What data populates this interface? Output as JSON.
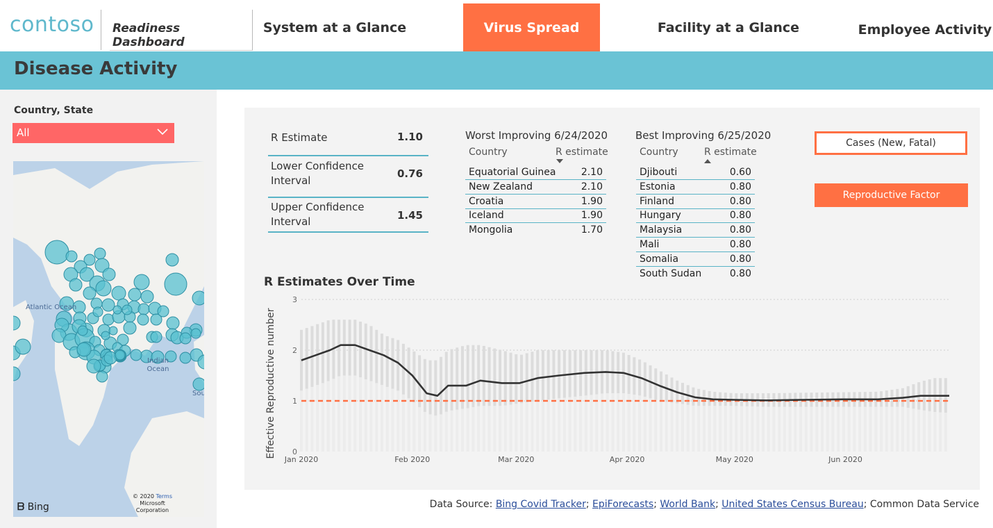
{
  "app": {
    "logo": "contoso",
    "nav": {
      "readiness": "Readiness Dashboard",
      "tabs": [
        {
          "label": "System at a Glance",
          "active": false
        },
        {
          "label": "Virus Spread",
          "active": true
        },
        {
          "label": "Facility at a Glance",
          "active": false
        },
        {
          "label": "Employee Activity",
          "active": false
        }
      ]
    },
    "accent_color": "#ff7043",
    "header_color": "#6ac3d5"
  },
  "page": {
    "title": "Disease Activity"
  },
  "filter": {
    "label": "Country, State",
    "value": "All"
  },
  "map": {
    "labels": {
      "atlantic": "Atlantic Ocean",
      "indian": "Indian Ocean",
      "south": "Sou"
    },
    "provider": "Bing",
    "copyright": "© 2020",
    "terms": "Terms",
    "corporation": "Microsoft Corporation"
  },
  "stats": {
    "r_estimate": {
      "label": "R Estimate",
      "value": "1.10"
    },
    "lower_ci": {
      "label": "Lower Confidence Interval",
      "value": "0.76"
    },
    "upper_ci": {
      "label": "Upper Confidence Interval",
      "value": "1.45"
    }
  },
  "worst": {
    "title": "Worst Improving 6/24/2020",
    "col1": "Country",
    "col2": "R estimate",
    "rows": [
      {
        "country": "Equatorial Guinea",
        "r": "2.10"
      },
      {
        "country": "New Zealand",
        "r": "2.10"
      },
      {
        "country": "Croatia",
        "r": "1.90"
      },
      {
        "country": "Iceland",
        "r": "1.90"
      },
      {
        "country": "Mongolia",
        "r": "1.70"
      }
    ]
  },
  "best": {
    "title": "Best Improving 6/25/2020",
    "col1": "Country",
    "col2": "R estimate",
    "rows": [
      {
        "country": "Djibouti",
        "r": "0.60"
      },
      {
        "country": "Estonia",
        "r": "0.80"
      },
      {
        "country": "Finland",
        "r": "0.80"
      },
      {
        "country": "Hungary",
        "r": "0.80"
      },
      {
        "country": "Malaysia",
        "r": "0.80"
      },
      {
        "country": "Mali",
        "r": "0.80"
      },
      {
        "country": "Somalia",
        "r": "0.80"
      },
      {
        "country": "South Sudan",
        "r": "0.80"
      }
    ]
  },
  "buttons": {
    "cases": "Cases (New, Fatal)",
    "reproductive": "Reproductive Factor"
  },
  "chart_data": {
    "type": "line",
    "title": "R Estimates Over Time",
    "ylabel": "Effective Reproductive number",
    "xlabel": "",
    "ylim": [
      0,
      3
    ],
    "yticks": [
      "0",
      "1",
      "2",
      "3"
    ],
    "xticks": [
      {
        "label": "Jan 2020",
        "x": "2020-01-01"
      },
      {
        "label": "Feb 2020",
        "x": "2020-02-01"
      },
      {
        "label": "Mar 2020",
        "x": "2020-03-01"
      },
      {
        "label": "Apr 2020",
        "x": "2020-04-01"
      },
      {
        "label": "May 2020",
        "x": "2020-05-01"
      },
      {
        "label": "Jun 2020",
        "x": "2020-06-01"
      }
    ],
    "x_range": [
      "2020-01-01",
      "2020-06-30"
    ],
    "reference_line": 1,
    "grid": true,
    "series": [
      {
        "values": [
          {
            "x": "2020-01-01",
            "y": 1.8,
            "low": 1.2,
            "high": 2.4
          },
          {
            "x": "2020-01-05",
            "y": 1.9,
            "low": 1.3,
            "high": 2.5
          },
          {
            "x": "2020-01-09",
            "y": 2.0,
            "low": 1.4,
            "high": 2.6
          },
          {
            "x": "2020-01-12",
            "y": 2.1,
            "low": 1.5,
            "high": 2.6
          },
          {
            "x": "2020-01-16",
            "y": 2.1,
            "low": 1.5,
            "high": 2.6
          },
          {
            "x": "2020-01-20",
            "y": 2.0,
            "low": 1.4,
            "high": 2.5
          },
          {
            "x": "2020-01-24",
            "y": 1.9,
            "low": 1.3,
            "high": 2.3
          },
          {
            "x": "2020-01-28",
            "y": 1.75,
            "low": 1.2,
            "high": 2.2
          },
          {
            "x": "2020-02-01",
            "y": 1.5,
            "low": 1.0,
            "high": 2.0
          },
          {
            "x": "2020-02-05",
            "y": 1.15,
            "low": 0.75,
            "high": 1.8
          },
          {
            "x": "2020-02-08",
            "y": 1.1,
            "low": 0.7,
            "high": 1.8
          },
          {
            "x": "2020-02-11",
            "y": 1.3,
            "low": 0.8,
            "high": 2.0
          },
          {
            "x": "2020-02-16",
            "y": 1.3,
            "low": 0.85,
            "high": 2.1
          },
          {
            "x": "2020-02-20",
            "y": 1.4,
            "low": 0.9,
            "high": 2.1
          },
          {
            "x": "2020-02-26",
            "y": 1.35,
            "low": 0.9,
            "high": 2.0
          },
          {
            "x": "2020-03-02",
            "y": 1.35,
            "low": 0.95,
            "high": 1.9
          },
          {
            "x": "2020-03-07",
            "y": 1.45,
            "low": 1.0,
            "high": 2.0
          },
          {
            "x": "2020-03-13",
            "y": 1.5,
            "low": 1.05,
            "high": 2.0
          },
          {
            "x": "2020-03-20",
            "y": 1.55,
            "low": 1.1,
            "high": 2.0
          },
          {
            "x": "2020-03-26",
            "y": 1.57,
            "low": 1.15,
            "high": 2.0
          },
          {
            "x": "2020-03-31",
            "y": 1.55,
            "low": 1.15,
            "high": 1.95
          },
          {
            "x": "2020-04-05",
            "y": 1.45,
            "low": 1.1,
            "high": 1.8
          },
          {
            "x": "2020-04-10",
            "y": 1.3,
            "low": 1.0,
            "high": 1.6
          },
          {
            "x": "2020-04-15",
            "y": 1.17,
            "low": 0.95,
            "high": 1.4
          },
          {
            "x": "2020-04-20",
            "y": 1.07,
            "low": 0.9,
            "high": 1.25
          },
          {
            "x": "2020-04-25",
            "y": 1.03,
            "low": 0.9,
            "high": 1.18
          },
          {
            "x": "2020-05-01",
            "y": 1.02,
            "low": 0.9,
            "high": 1.15
          },
          {
            "x": "2020-05-10",
            "y": 1.01,
            "low": 0.88,
            "high": 1.15
          },
          {
            "x": "2020-05-20",
            "y": 1.02,
            "low": 0.88,
            "high": 1.16
          },
          {
            "x": "2020-05-31",
            "y": 1.03,
            "low": 0.88,
            "high": 1.17
          },
          {
            "x": "2020-06-10",
            "y": 1.03,
            "low": 0.88,
            "high": 1.18
          },
          {
            "x": "2020-06-17",
            "y": 1.06,
            "low": 0.88,
            "high": 1.25
          },
          {
            "x": "2020-06-22",
            "y": 1.1,
            "low": 0.82,
            "high": 1.38
          },
          {
            "x": "2020-06-26",
            "y": 1.1,
            "low": 0.78,
            "high": 1.45
          },
          {
            "x": "2020-06-30",
            "y": 1.1,
            "low": 0.76,
            "high": 1.45
          }
        ]
      }
    ],
    "line_color": "#333333",
    "band_color": "#dcdcdc",
    "reference_color": "#ff7043"
  },
  "footer": {
    "prefix": "Data Source:",
    "sources": [
      "Bing Covid Tracker",
      "EpiForecasts",
      "World Bank",
      "United States Census Bureau"
    ],
    "suffix": "Common Data Service"
  }
}
